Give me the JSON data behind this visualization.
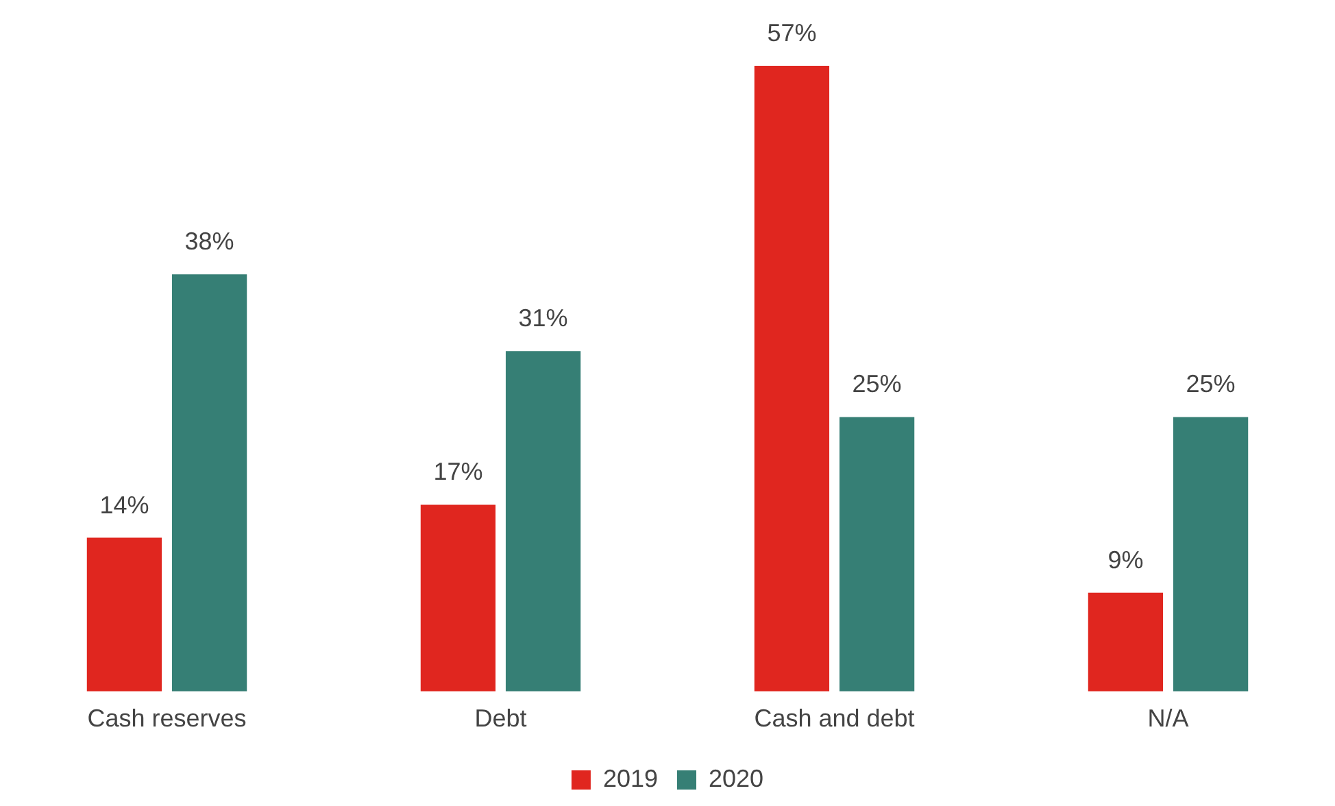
{
  "chart_data": {
    "type": "bar",
    "categories": [
      "Cash reserves",
      "Debt",
      "Cash and debt",
      "N/A"
    ],
    "series": [
      {
        "name": "2019",
        "color": "#e0261f",
        "values": [
          14,
          17,
          57,
          9
        ],
        "value_labels": [
          "14%",
          "17%",
          "57%",
          "9%"
        ]
      },
      {
        "name": "2020",
        "color": "#367f75",
        "values": [
          38,
          31,
          25,
          25
        ],
        "value_labels": [
          "38%",
          "31%",
          "25%",
          "25%"
        ]
      }
    ],
    "grid": false,
    "legend": "bottom",
    "tick_labels": "x"
  }
}
